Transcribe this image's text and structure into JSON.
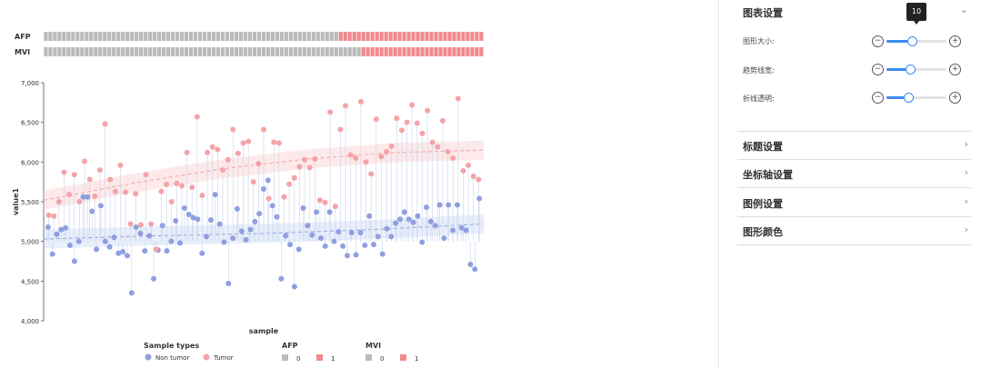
{
  "chart_data": {
    "type": "scatter",
    "title": "",
    "xlabel": "sample",
    "ylabel": "value1",
    "ylim": [
      4000,
      7000
    ],
    "yticks": [
      "4,000",
      "4,500",
      "5,000",
      "5,500",
      "6,000",
      "6,500",
      "7,000"
    ],
    "yticks_values": [
      4000,
      4500,
      5000,
      5500,
      6000,
      6500,
      7000
    ],
    "baseline": 5000,
    "series": [
      {
        "name": "Non tumor",
        "color": "#8f9fe0",
        "points": [
          [
            1,
            5180
          ],
          [
            2,
            4840
          ],
          [
            3,
            5090
          ],
          [
            4,
            5150
          ],
          [
            5,
            5170
          ],
          [
            6,
            4950
          ],
          [
            7,
            4750
          ],
          [
            8,
            5000
          ],
          [
            9,
            5560
          ],
          [
            10,
            5560
          ],
          [
            11,
            5380
          ],
          [
            12,
            4900
          ],
          [
            13,
            5450
          ],
          [
            14,
            5000
          ],
          [
            15,
            4930
          ],
          [
            16,
            5050
          ],
          [
            17,
            4850
          ],
          [
            18,
            4870
          ],
          [
            19,
            4820
          ],
          [
            20,
            4350
          ],
          [
            21,
            5180
          ],
          [
            22,
            5100
          ],
          [
            23,
            4880
          ],
          [
            24,
            5070
          ],
          [
            25,
            4530
          ],
          [
            26,
            4890
          ],
          [
            27,
            5200
          ],
          [
            28,
            4880
          ],
          [
            29,
            5000
          ],
          [
            30,
            5260
          ],
          [
            31,
            4980
          ],
          [
            32,
            5420
          ],
          [
            33,
            5340
          ],
          [
            34,
            5300
          ],
          [
            35,
            5280
          ],
          [
            36,
            4850
          ],
          [
            37,
            5060
          ],
          [
            38,
            5270
          ],
          [
            39,
            5590
          ],
          [
            40,
            5220
          ],
          [
            41,
            4990
          ],
          [
            42,
            4470
          ],
          [
            43,
            5040
          ],
          [
            44,
            5410
          ],
          [
            45,
            5130
          ],
          [
            46,
            5020
          ],
          [
            47,
            5150
          ],
          [
            48,
            5250
          ],
          [
            49,
            5350
          ],
          [
            50,
            5660
          ],
          [
            51,
            5770
          ],
          [
            52,
            5450
          ],
          [
            53,
            5310
          ],
          [
            54,
            4530
          ],
          [
            55,
            5070
          ],
          [
            56,
            4960
          ],
          [
            57,
            4430
          ],
          [
            58,
            4900
          ],
          [
            59,
            5420
          ],
          [
            60,
            5200
          ],
          [
            61,
            5080
          ],
          [
            62,
            5370
          ],
          [
            63,
            5040
          ],
          [
            64,
            4940
          ],
          [
            65,
            5370
          ],
          [
            66,
            5000
          ],
          [
            67,
            5120
          ],
          [
            68,
            4940
          ],
          [
            69,
            4820
          ],
          [
            70,
            5110
          ],
          [
            71,
            4830
          ],
          [
            72,
            5110
          ],
          [
            73,
            4950
          ],
          [
            74,
            5320
          ],
          [
            75,
            4960
          ],
          [
            76,
            5060
          ],
          [
            77,
            4840
          ],
          [
            78,
            5160
          ],
          [
            79,
            5060
          ],
          [
            80,
            5230
          ],
          [
            81,
            5280
          ],
          [
            82,
            5370
          ],
          [
            83,
            5280
          ],
          [
            84,
            5240
          ],
          [
            85,
            5320
          ],
          [
            86,
            4990
          ],
          [
            87,
            5430
          ],
          [
            88,
            5250
          ],
          [
            89,
            5200
          ],
          [
            90,
            5460
          ],
          [
            91,
            5040
          ],
          [
            92,
            5460
          ],
          [
            93,
            5140
          ],
          [
            94,
            5460
          ],
          [
            95,
            5170
          ],
          [
            96,
            5140
          ],
          [
            97,
            4710
          ],
          [
            98,
            4650
          ],
          [
            99,
            5540
          ]
        ]
      },
      {
        "name": "Tumor",
        "color": "#f4a3a8",
        "points": [
          [
            1,
            5330
          ],
          [
            2,
            5320
          ],
          [
            3,
            5500
          ],
          [
            4,
            5870
          ],
          [
            5,
            5590
          ],
          [
            6,
            5840
          ],
          [
            7,
            5500
          ],
          [
            8,
            6010
          ],
          [
            9,
            5780
          ],
          [
            10,
            5570
          ],
          [
            11,
            5900
          ],
          [
            12,
            6480
          ],
          [
            13,
            5780
          ],
          [
            14,
            5630
          ],
          [
            15,
            5960
          ],
          [
            16,
            5620
          ],
          [
            17,
            5220
          ],
          [
            18,
            5600
          ],
          [
            19,
            5210
          ],
          [
            20,
            5840
          ],
          [
            21,
            5220
          ],
          [
            22,
            4900
          ],
          [
            23,
            5630
          ],
          [
            24,
            5720
          ],
          [
            25,
            5500
          ],
          [
            26,
            5730
          ],
          [
            27,
            5700
          ],
          [
            28,
            6120
          ],
          [
            29,
            5680
          ],
          [
            30,
            6570
          ],
          [
            31,
            5580
          ],
          [
            32,
            6120
          ],
          [
            33,
            6190
          ],
          [
            34,
            6160
          ],
          [
            35,
            5900
          ],
          [
            36,
            6030
          ],
          [
            37,
            6410
          ],
          [
            38,
            6110
          ],
          [
            39,
            6240
          ],
          [
            40,
            6260
          ],
          [
            41,
            5750
          ],
          [
            42,
            5980
          ],
          [
            43,
            6410
          ],
          [
            44,
            5540
          ],
          [
            45,
            6250
          ],
          [
            46,
            6240
          ],
          [
            47,
            5560
          ],
          [
            48,
            5720
          ],
          [
            49,
            5800
          ],
          [
            50,
            5940
          ],
          [
            51,
            6030
          ],
          [
            52,
            5930
          ],
          [
            53,
            6040
          ],
          [
            54,
            5520
          ],
          [
            55,
            5490
          ],
          [
            56,
            6630
          ],
          [
            57,
            5440
          ],
          [
            58,
            6410
          ],
          [
            59,
            6710
          ],
          [
            60,
            6090
          ],
          [
            61,
            6050
          ],
          [
            62,
            6760
          ],
          [
            63,
            6000
          ],
          [
            64,
            5850
          ],
          [
            65,
            6540
          ],
          [
            66,
            6070
          ],
          [
            67,
            6130
          ],
          [
            68,
            6200
          ],
          [
            69,
            6550
          ],
          [
            70,
            6400
          ],
          [
            71,
            6500
          ],
          [
            72,
            6720
          ],
          [
            73,
            6490
          ],
          [
            74,
            6360
          ],
          [
            75,
            6650
          ],
          [
            76,
            6250
          ],
          [
            77,
            6190
          ],
          [
            78,
            6520
          ],
          [
            79,
            6130
          ],
          [
            80,
            6050
          ],
          [
            81,
            6800
          ],
          [
            82,
            5890
          ],
          [
            83,
            5960
          ],
          [
            84,
            5820
          ],
          [
            85,
            5780
          ]
        ]
      }
    ],
    "trend_lines": [
      {
        "name": "Non tumor",
        "points": [
          [
            0,
            5030
          ],
          [
            25,
            5070
          ],
          [
            50,
            5100
          ],
          [
            75,
            5150
          ],
          [
            100,
            5220
          ]
        ]
      },
      {
        "name": "Tumor",
        "points": [
          [
            0,
            5520
          ],
          [
            20,
            5730
          ],
          [
            40,
            5910
          ],
          [
            60,
            6040
          ],
          [
            80,
            6120
          ],
          [
            100,
            6150
          ]
        ]
      }
    ],
    "annotation_tracks": [
      {
        "label": "AFP",
        "n_zero": 65,
        "n_one": 32
      },
      {
        "label": "MVI",
        "n_zero": 70,
        "n_one": 27
      }
    ],
    "legend": {
      "sample_types": {
        "title": "Sample types",
        "items": [
          "Non tumor",
          "Tumor"
        ],
        "colors": [
          "#8f9fe0",
          "#f4a3a8"
        ]
      },
      "afp": {
        "title": "AFP",
        "items": [
          "0",
          "1"
        ],
        "colors": [
          "#bbbbbb",
          "#f08a8f"
        ]
      },
      "mvi": {
        "title": "MVI",
        "items": [
          "0",
          "1"
        ],
        "colors": [
          "#bbbbbb",
          "#f08a8f"
        ]
      }
    },
    "legend_placement": "bottom",
    "grid": false
  },
  "panel": {
    "chart_settings": {
      "title": "图表设置",
      "items": [
        {
          "label": "图形大小:",
          "value": 0.42
        },
        {
          "label": "趋势线宽:",
          "value": 0.4
        },
        {
          "label": "折线透明:",
          "value": 0.36
        }
      ],
      "tooltip": "10"
    },
    "sections": [
      {
        "label": "标题设置"
      },
      {
        "label": "坐标轴设置"
      },
      {
        "label": "图例设置"
      },
      {
        "label": "图形颜色"
      }
    ]
  }
}
